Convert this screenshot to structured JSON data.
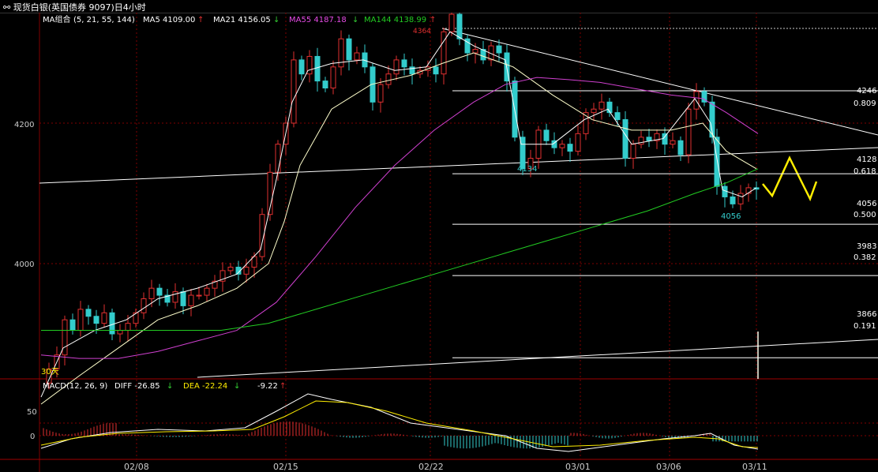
{
  "window": {
    "title": "现货白银(英国债券 9097)日4小时",
    "link_icon": "link-icon"
  },
  "main_panel": {
    "indicator_name": "MA组合",
    "indicator_params": "(5, 21, 55, 144)",
    "ma_readouts": [
      {
        "label": "MA5 4109.00",
        "arrow": "↑",
        "color": "#ffffff"
      },
      {
        "label": "MA21 4156.05",
        "arrow": "↓",
        "color": "#ffffff"
      },
      {
        "label": "MA55 4187.18",
        "arrow": "↓",
        "color": "#e64be6"
      },
      {
        "label": "MA144 4138.99",
        "arrow": "↑",
        "color": "#22cc22"
      }
    ],
    "peak_label": "4364",
    "low_labels": [
      "4134",
      "4056"
    ],
    "period_label": "30天",
    "y_ticks": [
      4000,
      4200
    ],
    "fib_levels": [
      {
        "price": "4246",
        "ratio": "0.809"
      },
      {
        "price": "4128",
        "ratio": "0.618"
      },
      {
        "price": "4056",
        "ratio": "0.500"
      },
      {
        "price": "3983",
        "ratio": "0.382"
      },
      {
        "price": "3866",
        "ratio": "0.191"
      }
    ]
  },
  "macd_panel": {
    "name": "MACD",
    "params": "(12, 26, 9)",
    "diff_label": "DIFF -26.85",
    "diff_arrow": "↓",
    "dea_label": "DEA -22.24",
    "dea_arrow": "↓",
    "macd_value": "-9.22",
    "macd_arrow": "↑",
    "y_ticks": [
      "50",
      "0"
    ]
  },
  "x_axis": {
    "date_labels": [
      "02/08",
      "02/15",
      "02/22",
      "03/01",
      "03/06",
      "03/11"
    ]
  },
  "colors": {
    "up": "#e03030",
    "down": "#33cccc",
    "ma5": "#ffffff",
    "ma21": "#ffffcc",
    "ma55": "#d040d0",
    "ma144": "#22cc22",
    "projection": "#ffee00",
    "grid": "#800000"
  },
  "chart_data": {
    "type": "candlestick",
    "title": "现货白银(英国债券 9097)日4小时",
    "ylim": [
      3780,
      4400
    ],
    "ma_series": [
      {
        "name": "MA5",
        "values_at_end": 4109.0
      },
      {
        "name": "MA21",
        "values_at_end": 4156.05
      },
      {
        "name": "MA55",
        "values_at_end": 4187.18
      },
      {
        "name": "MA144",
        "values_at_end": 4138.99
      }
    ],
    "key_prices": {
      "high": 4364,
      "swing_low_1": 4134,
      "swing_low_2": 4056
    },
    "fib_retracement": [
      {
        "ratio": 0.809,
        "price": 4246
      },
      {
        "ratio": 0.618,
        "price": 4128
      },
      {
        "ratio": 0.5,
        "price": 4056
      },
      {
        "ratio": 0.382,
        "price": 3983
      },
      {
        "ratio": 0.191,
        "price": 3866
      }
    ],
    "macd": {
      "diff": -26.85,
      "dea": -22.24,
      "macd": -9.22
    }
  }
}
